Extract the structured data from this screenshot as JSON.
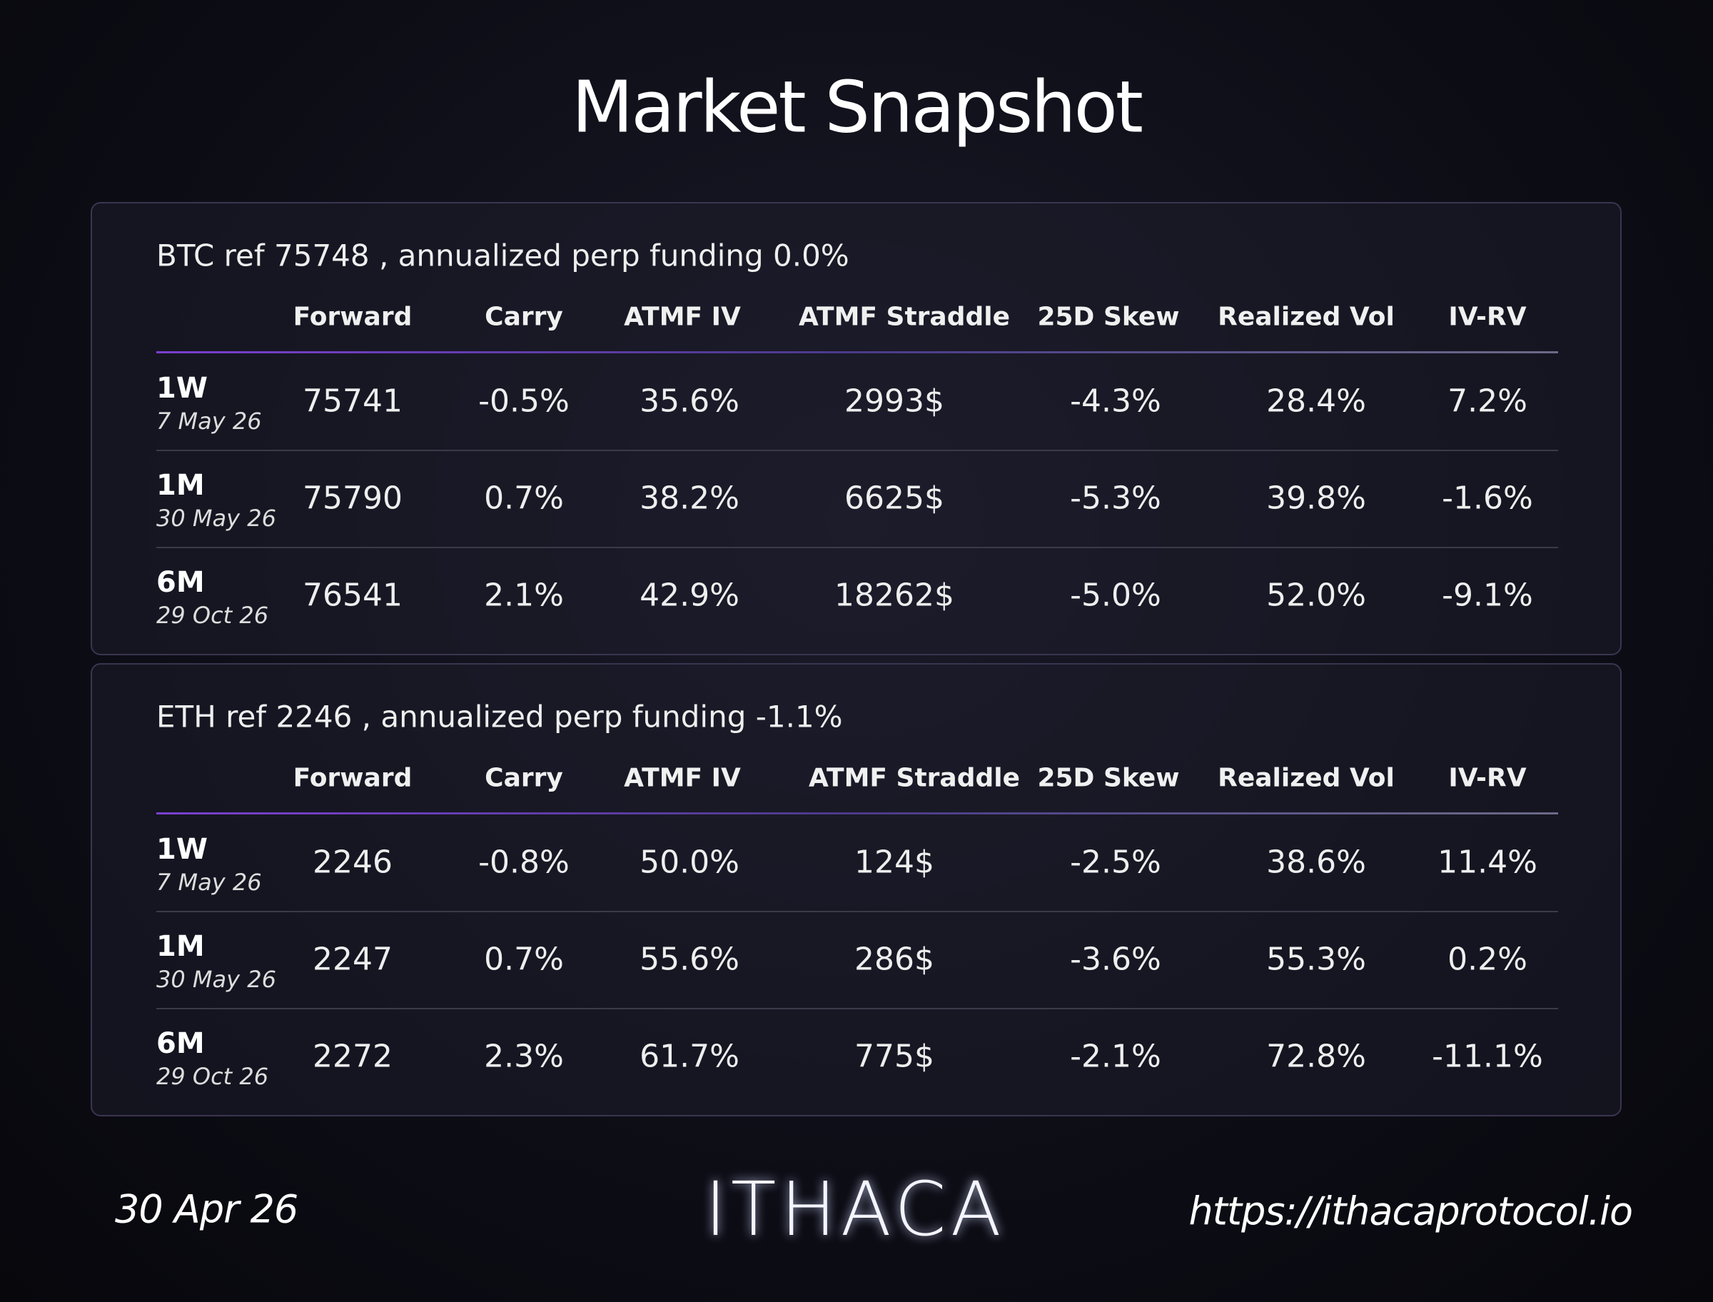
{
  "title": "Market Snapshot",
  "panels": [
    {
      "heading": "BTC ref 75748 , annualized perp funding 0.0%",
      "columns": [
        "Forward",
        "Carry",
        "ATMF IV",
        "ATMF Straddle",
        "25D Skew",
        "Realized Vol",
        "IV-RV"
      ],
      "rows": [
        {
          "tenor": "1W",
          "date": "7 May 26",
          "values": [
            "75741",
            "-0.5%",
            "35.6%",
            "2993$",
            "-4.3%",
            "28.4%",
            "7.2%"
          ]
        },
        {
          "tenor": "1M",
          "date": "30 May 26",
          "values": [
            "75790",
            "0.7%",
            "38.2%",
            "6625$",
            "-5.3%",
            "39.8%",
            "-1.6%"
          ]
        },
        {
          "tenor": "6M",
          "date": "29 Oct 26",
          "values": [
            "76541",
            "2.1%",
            "42.9%",
            "18262$",
            "-5.0%",
            "52.0%",
            "-9.1%"
          ]
        }
      ]
    },
    {
      "heading": "ETH ref 2246 , annualized perp funding -1.1%",
      "columns": [
        "Forward",
        "Carry",
        "ATMF IV",
        "ATMF Straddle",
        "25D Skew",
        "Realized Vol",
        "IV-RV"
      ],
      "rows": [
        {
          "tenor": "1W",
          "date": "7 May 26",
          "values": [
            "2246",
            "-0.8%",
            "50.0%",
            "124$",
            "-2.5%",
            "38.6%",
            "11.4%"
          ]
        },
        {
          "tenor": "1M",
          "date": "30 May 26",
          "values": [
            "2247",
            "0.7%",
            "55.6%",
            "286$",
            "-3.6%",
            "55.3%",
            "0.2%"
          ]
        },
        {
          "tenor": "6M",
          "date": "29 Oct 26",
          "values": [
            "2272",
            "2.3%",
            "61.7%",
            "775$",
            "-2.1%",
            "72.8%",
            "-11.1%"
          ]
        }
      ]
    }
  ],
  "footer": {
    "date": "30 Apr 26",
    "logo": "ITHACA",
    "url": "https://ithacaprotocol.io"
  }
}
